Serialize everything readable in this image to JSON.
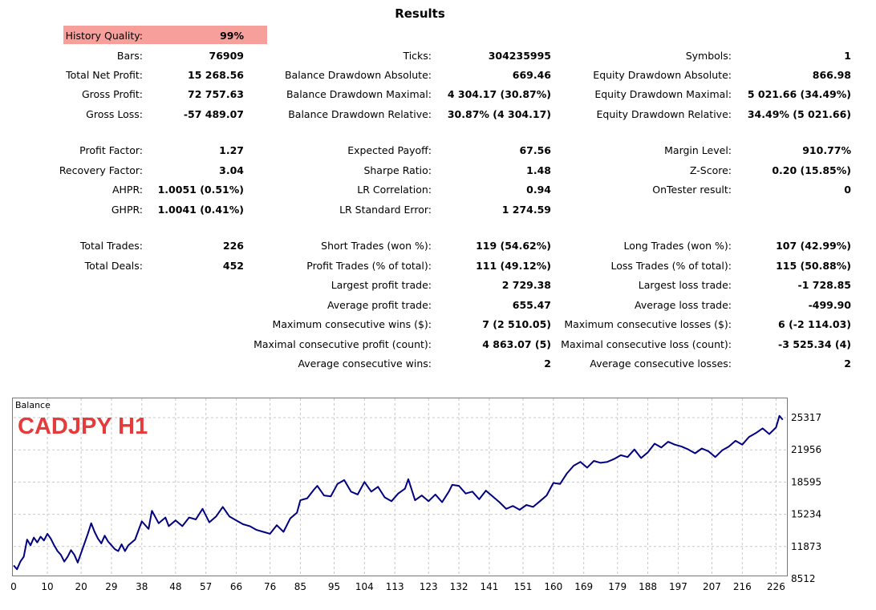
{
  "title": "Results",
  "history_quality": {
    "label": "History Quality:",
    "value": "99%",
    "highlight": "#f7a09b"
  },
  "col1": [
    {
      "label": "Bars:",
      "value": "76909"
    },
    {
      "label": "Total Net Profit:",
      "value": "15 268.56"
    },
    {
      "label": "Gross Profit:",
      "value": "72 757.63"
    },
    {
      "label": "Gross Loss:",
      "value": "-57 489.07"
    },
    {
      "label": "Profit Factor:",
      "value": "1.27"
    },
    {
      "label": "Recovery Factor:",
      "value": "3.04"
    },
    {
      "label": "AHPR:",
      "value": "1.0051 (0.51%)"
    },
    {
      "label": "GHPR:",
      "value": "1.0041 (0.41%)"
    },
    {
      "label": "Total Trades:",
      "value": "226"
    },
    {
      "label": "Total Deals:",
      "value": "452"
    }
  ],
  "col2": [
    {
      "label": "Ticks:",
      "value": "304235995"
    },
    {
      "label": "Balance Drawdown Absolute:",
      "value": "669.46"
    },
    {
      "label": "Balance Drawdown Maximal:",
      "value": "4 304.17 (30.87%)"
    },
    {
      "label": "Balance Drawdown Relative:",
      "value": "30.87% (4 304.17)"
    },
    {
      "label": "Expected Payoff:",
      "value": "67.56"
    },
    {
      "label": "Sharpe Ratio:",
      "value": "1.48"
    },
    {
      "label": "LR Correlation:",
      "value": "0.94"
    },
    {
      "label": "LR Standard Error:",
      "value": "1 274.59"
    },
    {
      "label": "Short Trades (won %):",
      "value": "119 (54.62%)"
    },
    {
      "label": "Profit Trades (% of total):",
      "value": "111 (49.12%)"
    },
    {
      "label": "Largest profit trade:",
      "value": "2 729.38"
    },
    {
      "label": "Average profit trade:",
      "value": "655.47"
    },
    {
      "label": "Maximum consecutive wins ($):",
      "value": "7 (2 510.05)"
    },
    {
      "label": "Maximal consecutive profit (count):",
      "value": "4 863.07 (5)"
    },
    {
      "label": "Average consecutive wins:",
      "value": "2"
    }
  ],
  "col3": [
    {
      "label": "Symbols:",
      "value": "1"
    },
    {
      "label": "Equity Drawdown Absolute:",
      "value": "866.98"
    },
    {
      "label": "Equity Drawdown Maximal:",
      "value": "5 021.66 (34.49%)"
    },
    {
      "label": "Equity Drawdown Relative:",
      "value": "34.49% (5 021.66)"
    },
    {
      "label": "Margin Level:",
      "value": "910.77%"
    },
    {
      "label": "Z-Score:",
      "value": "0.20 (15.85%)"
    },
    {
      "label": "OnTester result:",
      "value": "0"
    },
    {
      "label": "Long Trades (won %):",
      "value": "107 (42.99%)"
    },
    {
      "label": "Loss Trades (% of total):",
      "value": "115 (50.88%)"
    },
    {
      "label": "Largest loss trade:",
      "value": "-1 728.85"
    },
    {
      "label": "Average loss trade:",
      "value": "-499.90"
    },
    {
      "label": "Maximum consecutive losses ($):",
      "value": "6 (-2 114.03)"
    },
    {
      "label": "Maximal consecutive loss (count):",
      "value": "-3 525.34 (4)"
    },
    {
      "label": "Average consecutive losses:",
      "value": "2"
    }
  ],
  "chart_data": {
    "type": "line",
    "title": "Balance",
    "annotation": "CADJPY H1",
    "annotation_color": "#e63b3b",
    "line_color": "#000080",
    "grid": true,
    "xlim": [
      0,
      229
    ],
    "ylim": [
      8512,
      26000
    ],
    "x_ticks": [
      0,
      10,
      20,
      29,
      38,
      48,
      57,
      66,
      76,
      85,
      95,
      104,
      113,
      123,
      132,
      141,
      151,
      160,
      169,
      179,
      188,
      197,
      207,
      216,
      226
    ],
    "y_ticks": [
      8512,
      11873,
      15234,
      18595,
      21956,
      25317
    ],
    "series": [
      {
        "x": [
          0,
          1,
          2,
          3,
          4,
          5,
          6,
          7,
          8,
          9,
          10,
          11,
          12,
          13,
          14,
          15,
          16,
          17,
          18,
          19,
          20,
          21,
          22,
          23,
          24,
          25,
          26,
          27,
          28,
          29,
          30,
          31,
          32,
          33,
          34,
          36,
          38,
          40,
          41,
          43,
          45,
          46,
          48,
          50,
          52,
          54,
          56,
          58,
          60,
          62,
          64,
          66,
          68,
          70,
          72,
          74,
          76,
          78,
          80,
          82,
          84,
          85,
          87,
          89,
          90,
          92,
          94,
          96,
          98,
          100,
          102,
          104,
          106,
          108,
          110,
          112,
          114,
          116,
          117,
          119,
          121,
          123,
          125,
          127,
          129,
          130,
          132,
          134,
          136,
          138,
          140,
          142,
          144,
          146,
          148,
          150,
          152,
          154,
          156,
          158,
          160,
          162,
          164,
          166,
          168,
          170,
          172,
          174,
          176,
          178,
          180,
          182,
          184,
          186,
          188,
          190,
          192,
          194,
          196,
          198,
          200,
          202,
          204,
          206,
          208,
          210,
          212,
          214,
          216,
          218,
          220,
          222,
          224,
          226,
          227,
          228
        ],
        "y": [
          9900,
          9500,
          10300,
          10800,
          12600,
          12000,
          12800,
          12300,
          12900,
          12500,
          13200,
          12700,
          12000,
          11400,
          11000,
          10300,
          10800,
          11500,
          11000,
          10200,
          11200,
          12200,
          13200,
          14300,
          13400,
          12700,
          12200,
          13000,
          12400,
          12000,
          11600,
          11400,
          12100,
          11400,
          12000,
          12600,
          14500,
          13700,
          15600,
          14300,
          14900,
          14000,
          14600,
          14000,
          14900,
          14700,
          15800,
          14400,
          15000,
          16000,
          15000,
          14600,
          14200,
          14000,
          13600,
          13400,
          13200,
          14100,
          13400,
          14800,
          15400,
          16700,
          16900,
          17800,
          18200,
          17200,
          17100,
          18400,
          18800,
          17600,
          17300,
          18600,
          17600,
          18100,
          17000,
          16600,
          17400,
          17900,
          18900,
          16700,
          17200,
          16600,
          17300,
          16500,
          17600,
          18300,
          18200,
          17400,
          17600,
          16800,
          17700,
          17100,
          16500,
          15800,
          16100,
          15700,
          16200,
          16000,
          16600,
          17200,
          18500,
          18400,
          19500,
          20300,
          20700,
          20100,
          20800,
          20600,
          20700,
          21000,
          21400,
          21200,
          22000,
          21100,
          21700,
          22600,
          22200,
          22800,
          22500,
          22300,
          22000,
          21600,
          22100,
          21800,
          21200,
          21900,
          22300,
          22900,
          22500,
          23300,
          23700,
          24200,
          23600,
          24300,
          25500,
          25100
        ]
      }
    ]
  }
}
